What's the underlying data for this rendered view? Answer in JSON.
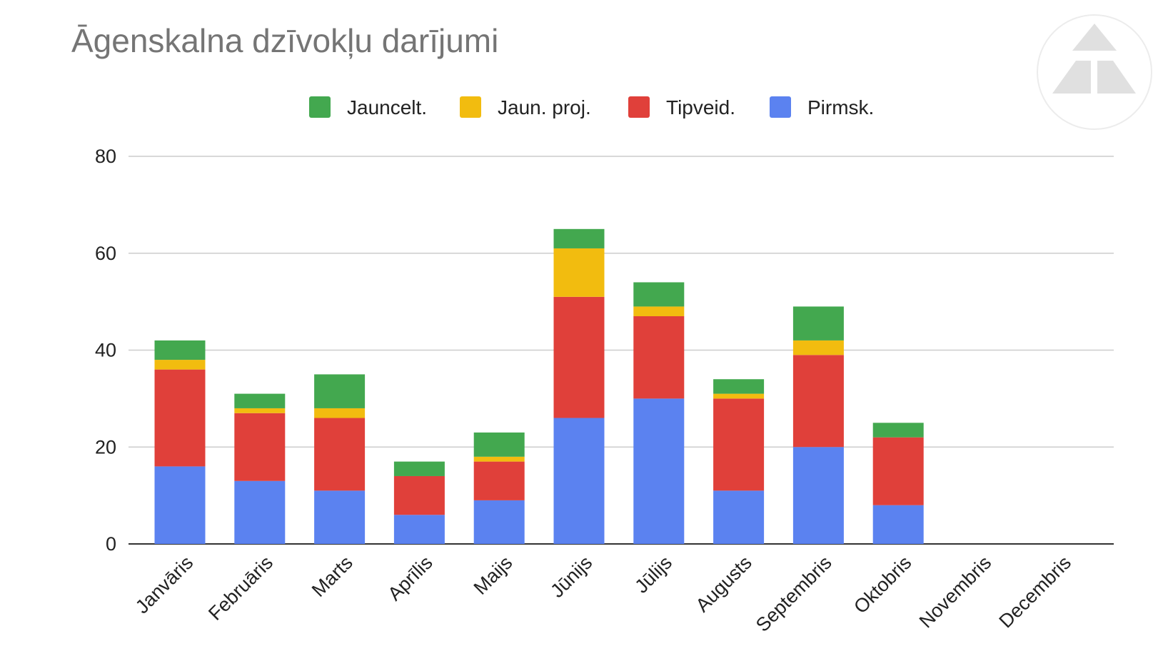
{
  "chart_data": {
    "type": "bar",
    "stacked": true,
    "title": "Āgenskalna dzīvokļu darījumi",
    "categories": [
      "Janvāris",
      "Februāris",
      "Marts",
      "Aprīlis",
      "Maijs",
      "Jūnijs",
      "Jūlijs",
      "Augusts",
      "Septembris",
      "Oktobris",
      "Novembris",
      "Decembris"
    ],
    "series": [
      {
        "name": "Pirmsk.",
        "color": "#5b82f0",
        "values": [
          16,
          13,
          11,
          6,
          9,
          26,
          30,
          11,
          20,
          8,
          0,
          0
        ]
      },
      {
        "name": "Tipveid.",
        "color": "#e0403a",
        "values": [
          20,
          14,
          15,
          8,
          8,
          25,
          17,
          19,
          19,
          14,
          0,
          0
        ]
      },
      {
        "name": "Jaun. proj.",
        "color": "#f2bc0f",
        "values": [
          2,
          1,
          2,
          0,
          1,
          10,
          2,
          1,
          3,
          0,
          0,
          0
        ]
      },
      {
        "name": "Jauncelt.",
        "color": "#43a84f",
        "values": [
          4,
          3,
          7,
          3,
          5,
          4,
          5,
          3,
          7,
          3,
          0,
          0
        ]
      }
    ],
    "legend_order": [
      "Jauncelt.",
      "Jaun. proj.",
      "Tipveid.",
      "Pirmsk."
    ],
    "legend_position": "top",
    "y_ticks": [
      0,
      20,
      40,
      60,
      80
    ],
    "ylim": [
      0,
      80
    ],
    "grid": true,
    "xlabel": "",
    "ylabel": ""
  }
}
